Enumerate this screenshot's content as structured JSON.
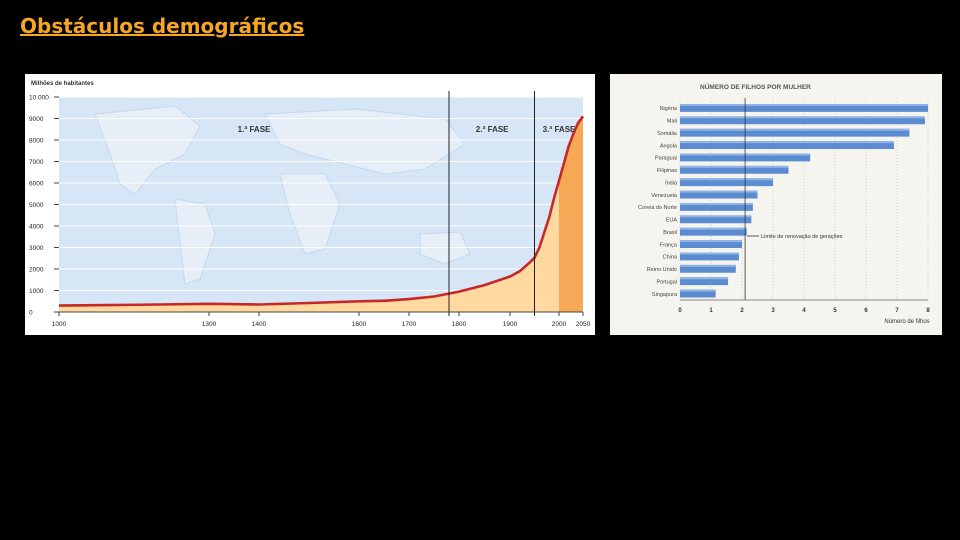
{
  "slide": {
    "title": "Obstáculos demográficos"
  },
  "chart_data": [
    {
      "type": "area",
      "ylabel": "Milhões de habitantes",
      "ylim": [
        0,
        10000
      ],
      "xlim": [
        1000,
        2050
      ],
      "y_ticks": [
        0,
        1000,
        2000,
        3000,
        4000,
        5000,
        6000,
        7000,
        8000,
        9000,
        10000
      ],
      "y_tick_labels": [
        "0",
        "1000",
        "2000",
        "3000",
        "4000",
        "5000",
        "6000",
        "7000",
        "8000",
        "9000",
        "10 000"
      ],
      "x_ticks": [
        1000,
        1300,
        1400,
        1600,
        1700,
        1800,
        1900,
        2000,
        2050
      ],
      "x_tick_labels": [
        "1000",
        "1300",
        "1400",
        "1600",
        "1700",
        "1800",
        "1900",
        "2000",
        "2050"
      ],
      "phase_boundaries": [
        1780,
        1950
      ],
      "phase_labels": [
        {
          "text": "1.ª FASE",
          "x": 1390
        },
        {
          "text": "2.ª FASE",
          "x": 1865
        },
        {
          "text": "3.ª FASE",
          "x": 2000
        }
      ],
      "grid": true,
      "series": [
        {
          "x": [
            1000,
            1100,
            1200,
            1300,
            1400,
            1500,
            1600,
            1650,
            1700,
            1750,
            1800,
            1850,
            1900,
            1920,
            1940,
            1950,
            1960,
            1970,
            1980,
            1990,
            2000,
            2010,
            2020,
            2030,
            2040,
            2050
          ],
          "y": [
            300,
            320,
            350,
            380,
            350,
            420,
            500,
            520,
            600,
            720,
            950,
            1250,
            1650,
            1900,
            2300,
            2520,
            3000,
            3700,
            4400,
            5300,
            6100,
            6900,
            7700,
            8300,
            8800,
            9100
          ]
        }
      ],
      "colors": {
        "line": "#c62828",
        "area": "#ffd9a0",
        "area_projection": "#f5a855",
        "plot_bg": "#d6e6f6"
      }
    },
    {
      "type": "bar",
      "title": "NÚMERO DE FILHOS POR MULHER",
      "xlabel": "Número de filhos",
      "xlim": [
        0,
        8
      ],
      "x_ticks": [
        0,
        1,
        2,
        3,
        4,
        5,
        6,
        7,
        8
      ],
      "orientation": "horizontal",
      "categories": [
        "Nigéria",
        "Mali",
        "Somália",
        "Angola",
        "Paraguai",
        "Filipinas",
        "Índia",
        "Venezuela",
        "Coreia do Norte",
        "EUA",
        "Brasil",
        "França",
        "China",
        "Reino Unido",
        "Portugal",
        "Singapura"
      ],
      "values": [
        8.0,
        7.9,
        7.4,
        6.9,
        4.2,
        3.5,
        3.0,
        2.5,
        2.35,
        2.3,
        2.15,
        2.0,
        1.9,
        1.8,
        1.55,
        1.15
      ],
      "reference_line": {
        "value": 2.1,
        "label": "Limite de renovação de gerações"
      },
      "colors": {
        "bar": "#5b8bd0",
        "bar_highlight": "#8fb3e6"
      }
    }
  ]
}
